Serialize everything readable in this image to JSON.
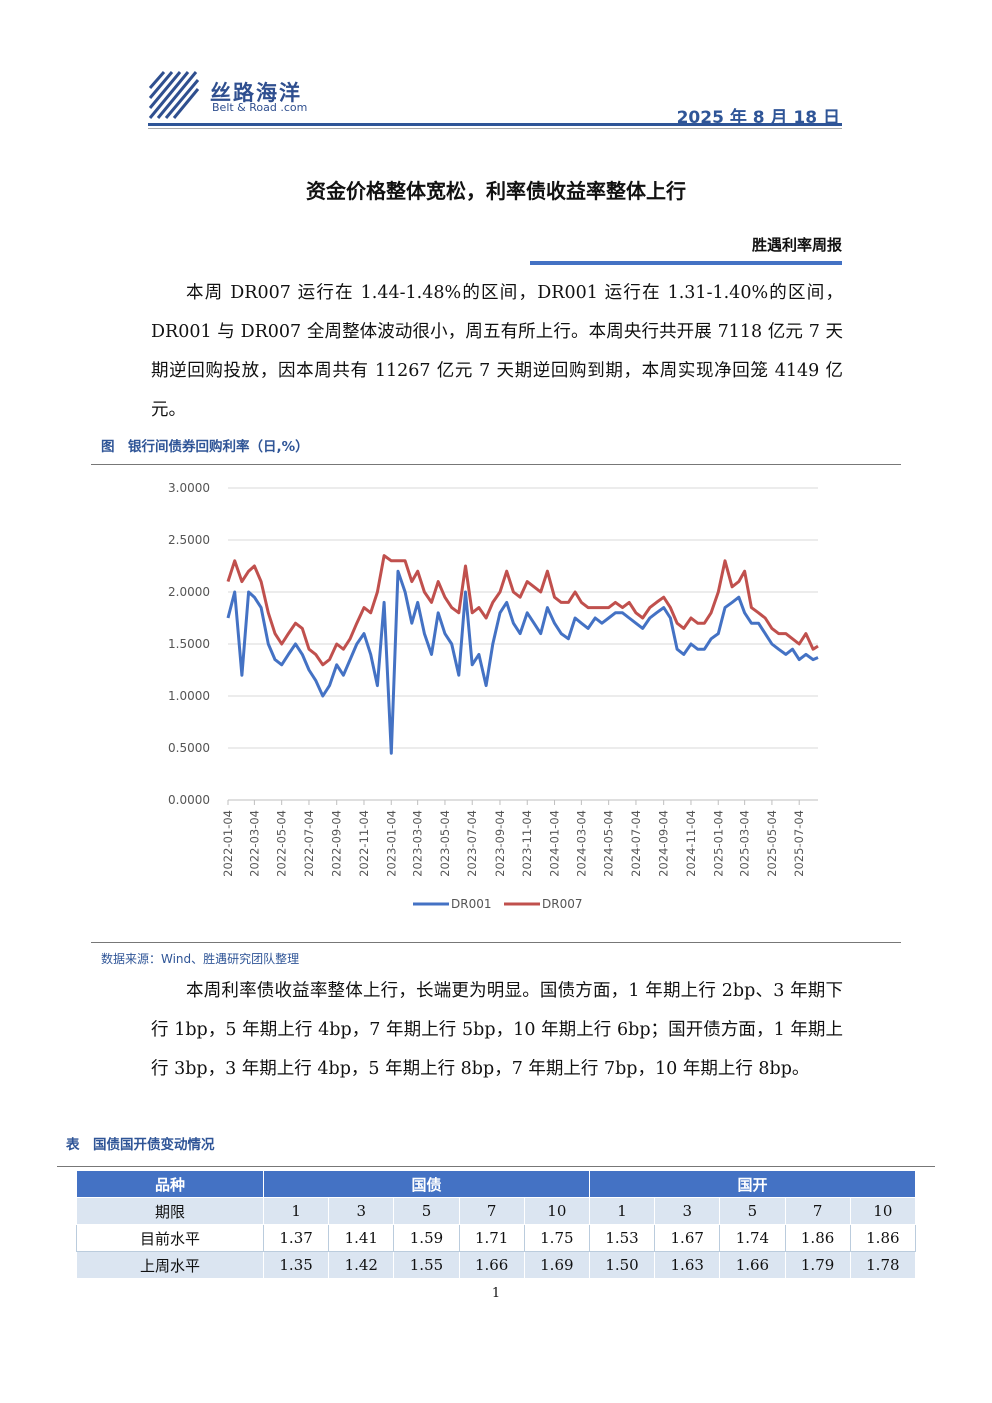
{
  "header": {
    "logo_cn": "丝路海洋",
    "logo_en": "Belt & Road .com",
    "date": "2025 年 8 月 18 日"
  },
  "title": "资金价格整体宽松，利率债收益率整体上行",
  "report_name": "胜遇利率周报",
  "paragraphs": [
    "本周 DR007 运行在 1.44-1.48%的区间，DR001 运行在 1.31-1.40%的区间，DR001 与 DR007 全周整体波动很小，周五有所上行。本周央行共开展 7118 亿元 7 天期逆回购投放，因本周共有 11267 亿元 7 天期逆回购到期，本周实现净回笼 4149 亿元。",
    "本周利率债收益率整体上行，长端更为明显。国债方面，1 年期上行 2bp、3 年期下行 1bp，5 年期上行 4bp，7 年期上行 5bp，10 年期上行 6bp；国开债方面，1 年期上行 3bp，3 年期上行 4bp，5 年期上行 8bp，7 年期上行 7bp，10 年期上行 8bp。"
  ],
  "chart_data": {
    "type": "line",
    "title": "图　银行间债券回购利率（日,%）",
    "source": "数据来源：Wind、胜遇研究团队整理",
    "x": [
      "2022-01-04",
      "2022-01-19",
      "2022-02-04",
      "2022-02-19",
      "2022-03-04",
      "2022-03-19",
      "2022-04-04",
      "2022-04-19",
      "2022-05-04",
      "2022-05-19",
      "2022-06-04",
      "2022-06-19",
      "2022-07-04",
      "2022-07-19",
      "2022-08-04",
      "2022-08-19",
      "2022-09-04",
      "2022-09-19",
      "2022-10-04",
      "2022-10-19",
      "2022-11-04",
      "2022-11-19",
      "2022-12-04",
      "2022-12-19",
      "2023-01-04",
      "2023-01-19",
      "2023-02-04",
      "2023-02-19",
      "2023-03-04",
      "2023-03-19",
      "2023-04-04",
      "2023-04-19",
      "2023-05-04",
      "2023-05-19",
      "2023-06-04",
      "2023-06-19",
      "2023-07-04",
      "2023-07-19",
      "2023-08-04",
      "2023-08-19",
      "2023-09-04",
      "2023-09-19",
      "2023-10-04",
      "2023-10-19",
      "2023-11-04",
      "2023-11-19",
      "2023-12-04",
      "2023-12-19",
      "2024-01-04",
      "2024-01-19",
      "2024-02-04",
      "2024-02-19",
      "2024-03-04",
      "2024-03-19",
      "2024-04-04",
      "2024-04-19",
      "2024-05-04",
      "2024-05-19",
      "2024-06-04",
      "2024-06-19",
      "2024-07-04",
      "2024-07-19",
      "2024-08-04",
      "2024-08-19",
      "2024-09-04",
      "2024-09-19",
      "2024-10-04",
      "2024-10-19",
      "2024-11-04",
      "2024-11-19",
      "2024-12-04",
      "2024-12-19",
      "2025-01-04",
      "2025-01-19",
      "2025-02-04",
      "2025-02-19",
      "2025-03-04",
      "2025-03-19",
      "2025-04-04",
      "2025-04-19",
      "2025-05-04",
      "2025-05-19",
      "2025-06-04",
      "2025-06-19",
      "2025-07-04",
      "2025-07-19",
      "2025-08-04",
      "2025-08-15"
    ],
    "series": [
      {
        "name": "DR001",
        "color": "#4472c4",
        "values": [
          1.75,
          2.0,
          1.2,
          2.0,
          1.95,
          1.85,
          1.5,
          1.35,
          1.3,
          1.4,
          1.5,
          1.4,
          1.25,
          1.15,
          1.0,
          1.1,
          1.3,
          1.2,
          1.35,
          1.5,
          1.6,
          1.4,
          1.1,
          1.9,
          0.45,
          2.2,
          2.0,
          1.7,
          1.9,
          1.6,
          1.4,
          1.8,
          1.6,
          1.5,
          1.2,
          2.0,
          1.3,
          1.4,
          1.1,
          1.5,
          1.8,
          1.9,
          1.7,
          1.6,
          1.8,
          1.7,
          1.6,
          1.85,
          1.7,
          1.6,
          1.55,
          1.75,
          1.7,
          1.65,
          1.75,
          1.7,
          1.75,
          1.8,
          1.8,
          1.75,
          1.7,
          1.65,
          1.75,
          1.8,
          1.85,
          1.75,
          1.45,
          1.4,
          1.5,
          1.45,
          1.45,
          1.55,
          1.6,
          1.85,
          1.9,
          1.95,
          1.8,
          1.7,
          1.7,
          1.6,
          1.5,
          1.45,
          1.4,
          1.45,
          1.35,
          1.4,
          1.35,
          1.37
        ]
      },
      {
        "name": "DR007",
        "color": "#c0504d",
        "values": [
          2.1,
          2.3,
          2.1,
          2.2,
          2.25,
          2.1,
          1.8,
          1.6,
          1.5,
          1.6,
          1.7,
          1.65,
          1.45,
          1.4,
          1.3,
          1.35,
          1.5,
          1.45,
          1.55,
          1.7,
          1.85,
          1.8,
          2.0,
          2.35,
          2.3,
          2.3,
          2.3,
          2.1,
          2.2,
          2.0,
          1.9,
          2.1,
          1.95,
          1.85,
          1.8,
          2.25,
          1.8,
          1.85,
          1.75,
          1.9,
          2.0,
          2.2,
          2.0,
          1.95,
          2.1,
          2.05,
          2.0,
          2.2,
          1.95,
          1.9,
          1.9,
          2.0,
          1.9,
          1.85,
          1.85,
          1.85,
          1.85,
          1.9,
          1.85,
          1.9,
          1.8,
          1.75,
          1.85,
          1.9,
          1.95,
          1.85,
          1.7,
          1.65,
          1.75,
          1.7,
          1.7,
          1.8,
          2.0,
          2.3,
          2.05,
          2.1,
          2.2,
          1.85,
          1.8,
          1.75,
          1.65,
          1.6,
          1.6,
          1.55,
          1.5,
          1.6,
          1.45,
          1.48
        ]
      }
    ],
    "xlim": [
      "2022-01-04",
      "2025-08-15"
    ],
    "xticks": [
      "2022-01-04",
      "2022-03-04",
      "2022-05-04",
      "2022-07-04",
      "2022-09-04",
      "2022-11-04",
      "2023-01-04",
      "2023-03-04",
      "2023-05-04",
      "2023-07-04",
      "2023-09-04",
      "2023-11-04",
      "2024-01-04",
      "2024-03-04",
      "2024-05-04",
      "2024-07-04",
      "2024-09-04",
      "2024-11-04",
      "2025-01-04",
      "2025-03-04",
      "2025-05-04",
      "2025-07-04"
    ],
    "ylim": [
      0,
      3
    ],
    "yticks": [
      {
        "value": 0,
        "label": "0.0000"
      },
      {
        "value": 0.5,
        "label": "0.5000"
      },
      {
        "value": 1,
        "label": "1.0000"
      },
      {
        "value": 1.5,
        "label": "1.5000"
      },
      {
        "value": 2,
        "label": "2.0000"
      },
      {
        "value": 2.5,
        "label": "2.5000"
      },
      {
        "value": 3,
        "label": "3.0000"
      }
    ],
    "grid": true,
    "legend": "bottom"
  },
  "table": {
    "caption": "表　国债国开债变动情况",
    "header": [
      "品种",
      "国债",
      "国开"
    ],
    "rows": [
      [
        "期限",
        "1",
        "3",
        "5",
        "7",
        "10",
        "1",
        "3",
        "5",
        "7",
        "10"
      ],
      [
        "目前水平",
        "1.37",
        "1.41",
        "1.59",
        "1.71",
        "1.75",
        "1.53",
        "1.67",
        "1.74",
        "1.86",
        "1.86"
      ],
      [
        "上周水平",
        "1.35",
        "1.42",
        "1.55",
        "1.66",
        "1.69",
        "1.50",
        "1.63",
        "1.66",
        "1.79",
        "1.78"
      ]
    ]
  },
  "page_number": "1"
}
